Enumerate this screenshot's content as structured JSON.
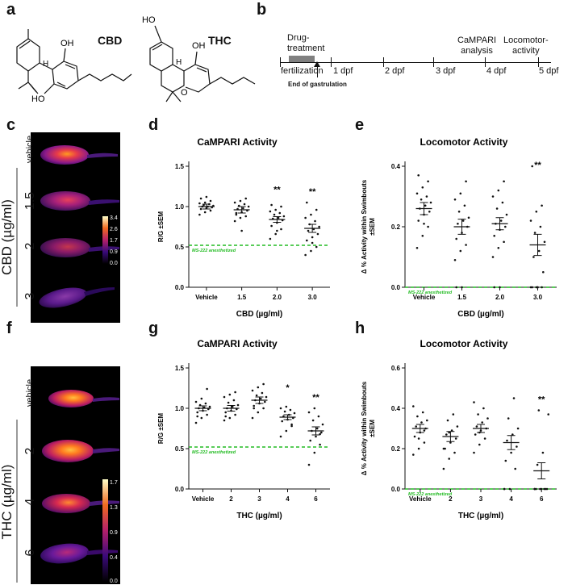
{
  "panels": {
    "a": "a",
    "b": "b",
    "c": "c",
    "d": "d",
    "e": "e",
    "f": "f",
    "g": "g",
    "h": "h"
  },
  "structures": {
    "cbd_label": "CBD",
    "thc_label": "THC",
    "atoms": {
      "oh": "OH",
      "ho": "HO",
      "h": "H",
      "o": "O"
    }
  },
  "timeline": {
    "drug_treatment": "Drug-\ntreatment",
    "fertilization": "fertilization",
    "end_gastrulation": "End of gastrulation",
    "ticks": [
      "1 dpf",
      "2 dpf",
      "3 dpf",
      "4 dpf",
      "5 dpf"
    ],
    "campari": "CaMPARI\nanalysis",
    "locomotor": "Locomotor-\nactivity"
  },
  "images_cbd": {
    "group_label": "CBD (µg/ml)",
    "row_labels": [
      "vehicle",
      "1.5",
      "2",
      "3"
    ],
    "colorbar": [
      "3.4",
      "2.6",
      "1.7",
      "0.9",
      "0.0"
    ]
  },
  "images_thc": {
    "group_label": "THC (µg/ml)",
    "row_labels": [
      "vehicle",
      "2",
      "4",
      "6"
    ],
    "colorbar": [
      "1.7",
      "1.3",
      "0.9",
      "0.4",
      "0.0"
    ]
  },
  "colors": {
    "dashed": "#22bb22",
    "fish_dark": "#3a0a5a",
    "fish_mid": "#cc1a4a",
    "fish_hot": "#ff8a00"
  },
  "chart_data": [
    {
      "id": "d",
      "type": "scatter",
      "title": "CaMPARI Activity",
      "ylabel": "R/G ±SEM",
      "xlabel": "CBD (µg/ml)",
      "categories": [
        "Vehicle",
        "1.5",
        "2.0",
        "3.0"
      ],
      "ylim": [
        0,
        1.5
      ],
      "yticks": [
        "0.0",
        "0.5",
        "1.0",
        "1.5"
      ],
      "means": [
        1.0,
        0.96,
        0.84,
        0.73
      ],
      "sem": [
        0.03,
        0.04,
        0.035,
        0.05
      ],
      "points": [
        [
          0.9,
          0.93,
          0.95,
          0.97,
          0.98,
          0.99,
          1.0,
          1.0,
          1.01,
          1.02,
          1.03,
          1.04,
          1.05,
          1.07,
          1.1,
          1.12
        ],
        [
          0.82,
          0.86,
          0.88,
          0.9,
          0.93,
          0.95,
          0.97,
          0.98,
          1.0,
          1.01,
          1.03,
          1.05,
          1.07,
          1.1,
          0.92,
          0.7
        ],
        [
          0.6,
          0.66,
          0.72,
          0.76,
          0.8,
          0.83,
          0.85,
          0.86,
          0.88,
          0.9,
          0.92,
          0.94,
          0.96,
          1.0,
          1.02,
          0.7
        ],
        [
          0.4,
          0.45,
          0.5,
          0.58,
          0.62,
          0.66,
          0.7,
          0.72,
          0.75,
          0.78,
          0.82,
          0.86,
          0.9,
          0.96,
          1.05,
          0.55
        ]
      ],
      "significance": [
        "",
        "",
        "**",
        "**"
      ],
      "reference": {
        "value": 0.52,
        "label": "MS-222 anesthetized"
      }
    },
    {
      "id": "e",
      "type": "scatter",
      "title": "Locomotor Activity",
      "ylabel": "Δ % Activity within Swimbouts\n±SEM",
      "xlabel": "CBD (µg/ml)",
      "categories": [
        "Vehicle",
        "1.5",
        "2.0",
        "3.0"
      ],
      "ylim": [
        0,
        0.4
      ],
      "yticks": [
        "0.0",
        "0.2",
        "0.4"
      ],
      "means": [
        0.26,
        0.2,
        0.21,
        0.14
      ],
      "sem": [
        0.02,
        0.025,
        0.02,
        0.035
      ],
      "points": [
        [
          0.13,
          0.17,
          0.2,
          0.22,
          0.24,
          0.25,
          0.26,
          0.27,
          0.28,
          0.29,
          0.3,
          0.31,
          0.33,
          0.35,
          0.37,
          0.21
        ],
        [
          0.09,
          0.12,
          0.14,
          0.16,
          0.18,
          0.2,
          0.21,
          0.22,
          0.23,
          0.25,
          0.27,
          0.29,
          0.31,
          0.35,
          0.0,
          0.0
        ],
        [
          0.1,
          0.13,
          0.15,
          0.17,
          0.19,
          0.2,
          0.21,
          0.22,
          0.24,
          0.26,
          0.28,
          0.3,
          0.32,
          0.35,
          0.0,
          0.0
        ],
        [
          0.0,
          0.0,
          0.0,
          0.0,
          0.0,
          0.05,
          0.1,
          0.12,
          0.15,
          0.18,
          0.2,
          0.22,
          0.25,
          0.27,
          0.4,
          0.0
        ]
      ],
      "significance": [
        "",
        "",
        "",
        "**"
      ],
      "reference": {
        "value": 0.0,
        "label": "MS-222 anesthetized"
      }
    },
    {
      "id": "g",
      "type": "scatter",
      "title": "CaMPARI Activity",
      "ylabel": "R/G ±SEM",
      "xlabel": "THC (µg/ml)",
      "categories": [
        "Vehicle",
        "2",
        "3",
        "4",
        "6"
      ],
      "ylim": [
        0,
        1.5
      ],
      "yticks": [
        "0.0",
        "0.5",
        "1.0",
        "1.5"
      ],
      "means": [
        1.0,
        1.0,
        1.1,
        0.89,
        0.72
      ],
      "sem": [
        0.03,
        0.035,
        0.04,
        0.03,
        0.05
      ],
      "points": [
        [
          0.82,
          0.88,
          0.92,
          0.95,
          0.97,
          0.99,
          1.0,
          1.01,
          1.02,
          1.04,
          1.06,
          1.08,
          1.12,
          1.24,
          0.9
        ],
        [
          0.85,
          0.88,
          0.92,
          0.95,
          0.97,
          0.99,
          1.0,
          1.02,
          1.04,
          1.07,
          1.1,
          1.14,
          1.17,
          1.2,
          0.9
        ],
        [
          0.88,
          0.95,
          1.0,
          1.03,
          1.06,
          1.08,
          1.1,
          1.12,
          1.14,
          1.16,
          1.19,
          1.22,
          1.26,
          1.3,
          1.0
        ],
        [
          0.65,
          0.72,
          0.8,
          0.84,
          0.86,
          0.88,
          0.9,
          0.92,
          0.94,
          0.96,
          0.98,
          1.0,
          1.02,
          0.78
        ],
        [
          0.3,
          0.45,
          0.55,
          0.6,
          0.65,
          0.7,
          0.72,
          0.75,
          0.8,
          0.85,
          0.9,
          0.95,
          1.0,
          0.68
        ]
      ],
      "significance": [
        "",
        "",
        "",
        "*",
        "**"
      ],
      "reference": {
        "value": 0.52,
        "label": "MS-222 anesthetized"
      }
    },
    {
      "id": "h",
      "type": "scatter",
      "title": "Locomotor Activity",
      "ylabel": "Δ % Activity within Swimbouts\n±SEM",
      "xlabel": "THC (µg/ml)",
      "categories": [
        "Vehicle",
        "2",
        "3",
        "4",
        "6"
      ],
      "ylim": [
        0,
        0.6
      ],
      "yticks": [
        "0.0",
        "0.2",
        "0.4",
        "0.6"
      ],
      "means": [
        0.3,
        0.26,
        0.3,
        0.23,
        0.09
      ],
      "sem": [
        0.02,
        0.025,
        0.02,
        0.035,
        0.04
      ],
      "points": [
        [
          0.17,
          0.2,
          0.23,
          0.26,
          0.28,
          0.3,
          0.31,
          0.33,
          0.34,
          0.36,
          0.38,
          0.41,
          0.25,
          0.29
        ],
        [
          0.1,
          0.15,
          0.18,
          0.2,
          0.23,
          0.25,
          0.27,
          0.29,
          0.31,
          0.34,
          0.37,
          0.2,
          0.28
        ],
        [
          0.18,
          0.22,
          0.25,
          0.27,
          0.29,
          0.3,
          0.31,
          0.33,
          0.35,
          0.37,
          0.4,
          0.43,
          0.28
        ],
        [
          0.0,
          0.0,
          0.1,
          0.14,
          0.18,
          0.21,
          0.24,
          0.27,
          0.3,
          0.35,
          0.45,
          0.0
        ],
        [
          0.0,
          0.0,
          0.0,
          0.0,
          0.0,
          0.0,
          0.12,
          0.18,
          0.37,
          0.39,
          0.0,
          0.0
        ]
      ],
      "significance": [
        "",
        "",
        "",
        "",
        "**"
      ],
      "reference": {
        "value": 0.0,
        "label": "MS-222 anesthetized"
      }
    }
  ]
}
